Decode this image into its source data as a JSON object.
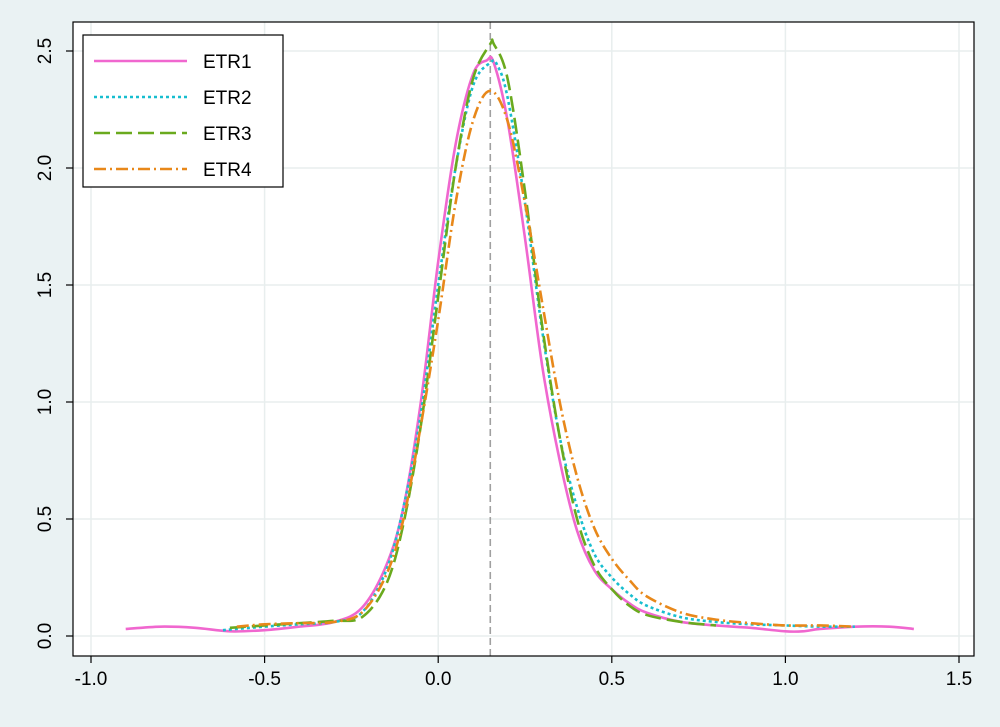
{
  "chart_data": {
    "type": "line",
    "title": "",
    "xlabel": "",
    "ylabel": "",
    "xlim": [
      -1.0,
      1.5
    ],
    "ylim": [
      0.0,
      2.5
    ],
    "xticks": [
      -1.0,
      -0.5,
      0.0,
      0.5,
      1.0,
      1.5
    ],
    "xtick_labels": [
      "-1.0",
      "-0.5",
      "0.0",
      "0.5",
      "1.0",
      "1.5"
    ],
    "yticks": [
      0.0,
      0.5,
      1.0,
      1.5,
      2.0,
      2.5
    ],
    "ytick_labels": [
      "0.0",
      "0.5",
      "1.0",
      "1.5",
      "2.0",
      "2.5"
    ],
    "grid": true,
    "legend_position": "top-left",
    "reference_line": {
      "orientation": "vertical",
      "x": 0.15,
      "color": "#a0a0a0",
      "style": "dashed"
    },
    "background": "#eaf2f3",
    "plot_background": "#ffffff",
    "series": [
      {
        "name": "ETR1",
        "color": "#f067cf",
        "line_style": "solid",
        "x": [
          -0.9,
          -0.8,
          -0.7,
          -0.6,
          -0.5,
          -0.4,
          -0.3,
          -0.22,
          -0.15,
          -0.1,
          -0.05,
          0.0,
          0.05,
          0.1,
          0.14,
          0.16,
          0.2,
          0.25,
          0.3,
          0.35,
          0.4,
          0.45,
          0.5,
          0.55,
          0.6,
          0.7,
          0.8,
          0.9,
          1.0,
          1.05,
          1.1,
          1.2,
          1.3,
          1.37
        ],
        "y": [
          0.03,
          0.04,
          0.035,
          0.02,
          0.025,
          0.04,
          0.06,
          0.12,
          0.3,
          0.55,
          1.0,
          1.6,
          2.1,
          2.4,
          2.46,
          2.45,
          2.2,
          1.7,
          1.15,
          0.75,
          0.45,
          0.28,
          0.2,
          0.14,
          0.1,
          0.06,
          0.045,
          0.035,
          0.02,
          0.02,
          0.03,
          0.04,
          0.04,
          0.03
        ]
      },
      {
        "name": "ETR2",
        "color": "#17becf",
        "line_style": "dotted",
        "x": [
          -0.62,
          -0.5,
          -0.4,
          -0.3,
          -0.22,
          -0.15,
          -0.1,
          -0.05,
          0.0,
          0.05,
          0.1,
          0.15,
          0.17,
          0.2,
          0.25,
          0.3,
          0.35,
          0.4,
          0.45,
          0.5,
          0.55,
          0.6,
          0.7,
          0.8,
          0.9,
          1.0,
          1.1,
          1.2
        ],
        "y": [
          0.025,
          0.04,
          0.05,
          0.06,
          0.1,
          0.28,
          0.55,
          0.95,
          1.5,
          2.0,
          2.35,
          2.45,
          2.44,
          2.3,
          1.85,
          1.3,
          0.85,
          0.55,
          0.35,
          0.25,
          0.18,
          0.13,
          0.08,
          0.06,
          0.05,
          0.045,
          0.04,
          0.04
        ]
      },
      {
        "name": "ETR3",
        "color": "#6aaa1e",
        "line_style": "long-dash",
        "x": [
          -0.6,
          -0.5,
          -0.4,
          -0.3,
          -0.22,
          -0.15,
          -0.1,
          -0.05,
          0.0,
          0.05,
          0.1,
          0.15,
          0.16,
          0.2,
          0.25,
          0.3,
          0.35,
          0.4,
          0.45,
          0.5,
          0.55,
          0.6,
          0.7,
          0.8
        ],
        "y": [
          0.035,
          0.045,
          0.055,
          0.065,
          0.08,
          0.22,
          0.48,
          0.9,
          1.45,
          2.0,
          2.38,
          2.53,
          2.53,
          2.38,
          1.9,
          1.32,
          0.85,
          0.5,
          0.3,
          0.2,
          0.13,
          0.09,
          0.06,
          0.045
        ]
      },
      {
        "name": "ETR4",
        "color": "#e8881a",
        "line_style": "dash-dot",
        "x": [
          -0.58,
          -0.5,
          -0.4,
          -0.3,
          -0.22,
          -0.15,
          -0.1,
          -0.05,
          0.0,
          0.05,
          0.1,
          0.15,
          0.2,
          0.25,
          0.3,
          0.35,
          0.4,
          0.45,
          0.5,
          0.55,
          0.6,
          0.7,
          0.8,
          0.9,
          1.0,
          1.1,
          1.2
        ],
        "y": [
          0.04,
          0.05,
          0.055,
          0.06,
          0.1,
          0.26,
          0.5,
          0.9,
          1.35,
          1.85,
          2.2,
          2.33,
          2.2,
          1.85,
          1.42,
          1.0,
          0.68,
          0.46,
          0.33,
          0.24,
          0.17,
          0.1,
          0.07,
          0.055,
          0.045,
          0.045,
          0.04
        ]
      }
    ]
  }
}
